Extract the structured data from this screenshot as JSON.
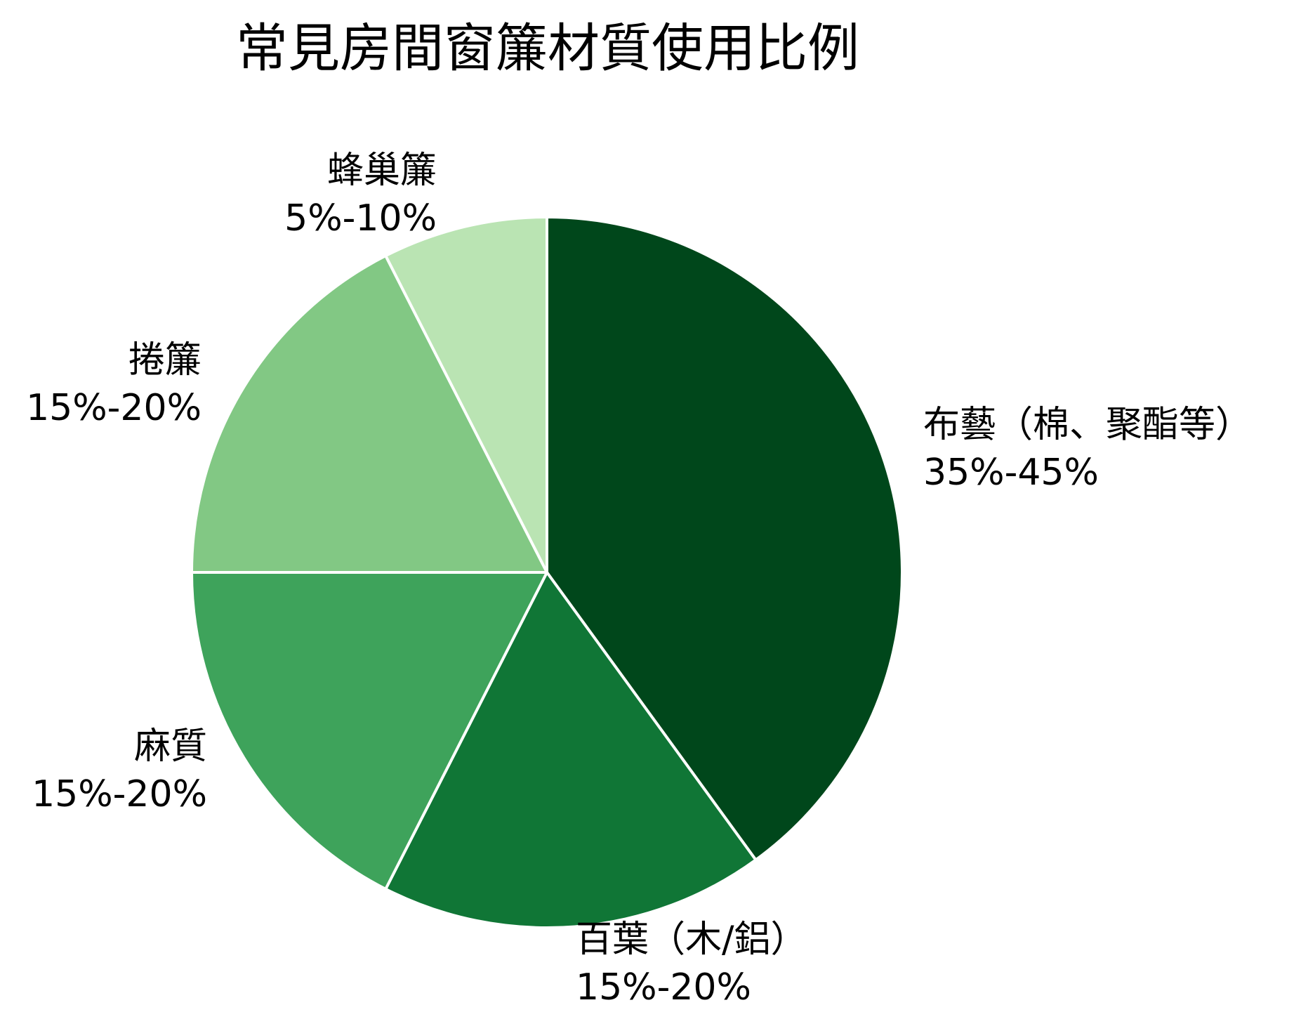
{
  "chart_data": {
    "type": "pie",
    "title": "常見房間窗簾材質使用比例",
    "start_angle_deg": 90,
    "direction": "clockwise",
    "slices": [
      {
        "label": "布藝（棉、聚酯等）",
        "range_text": "35%-45%",
        "value": 40,
        "color": "#00471b"
      },
      {
        "label": "百葉（木/鋁）",
        "range_text": "15%-20%",
        "value": 17.5,
        "color": "#107636"
      },
      {
        "label": "麻質",
        "range_text": "15%-20%",
        "value": 17.5,
        "color": "#3ea35b"
      },
      {
        "label": "捲簾",
        "range_text": "15%-20%",
        "value": 17.5,
        "color": "#82c884"
      },
      {
        "label": "蜂巢簾",
        "range_text": "5%-10%",
        "value": 7.5,
        "color": "#bae4b3"
      }
    ],
    "slice_border_color": "#ffffff",
    "legend": "none"
  }
}
